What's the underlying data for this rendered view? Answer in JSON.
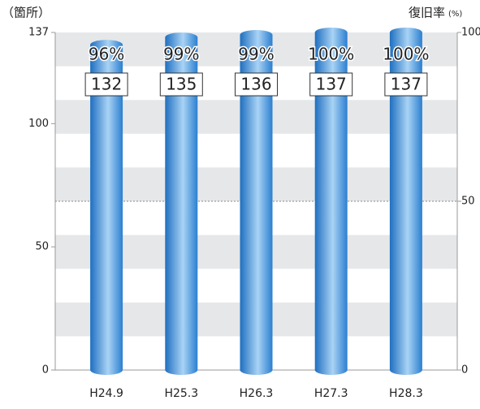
{
  "chart_data": {
    "type": "bar",
    "y_label": "（箇所）",
    "y2_label": "復旧率",
    "y2_unit": "(%)",
    "categories": [
      "H24.9",
      "H25.3",
      "H26.3",
      "H27.3",
      "H28.3"
    ],
    "values": [
      132,
      135,
      136,
      137,
      137
    ],
    "rates": [
      96,
      99,
      99,
      100,
      100
    ],
    "rate_labels": [
      "96%",
      "99%",
      "99%",
      "100%",
      "100%"
    ],
    "color": "#3b8fd6",
    "ylim": [
      0,
      137
    ],
    "yticks": [
      0,
      50,
      100,
      137
    ],
    "y2lim": [
      0,
      100
    ],
    "y2ticks": [
      0,
      50,
      100
    ]
  }
}
